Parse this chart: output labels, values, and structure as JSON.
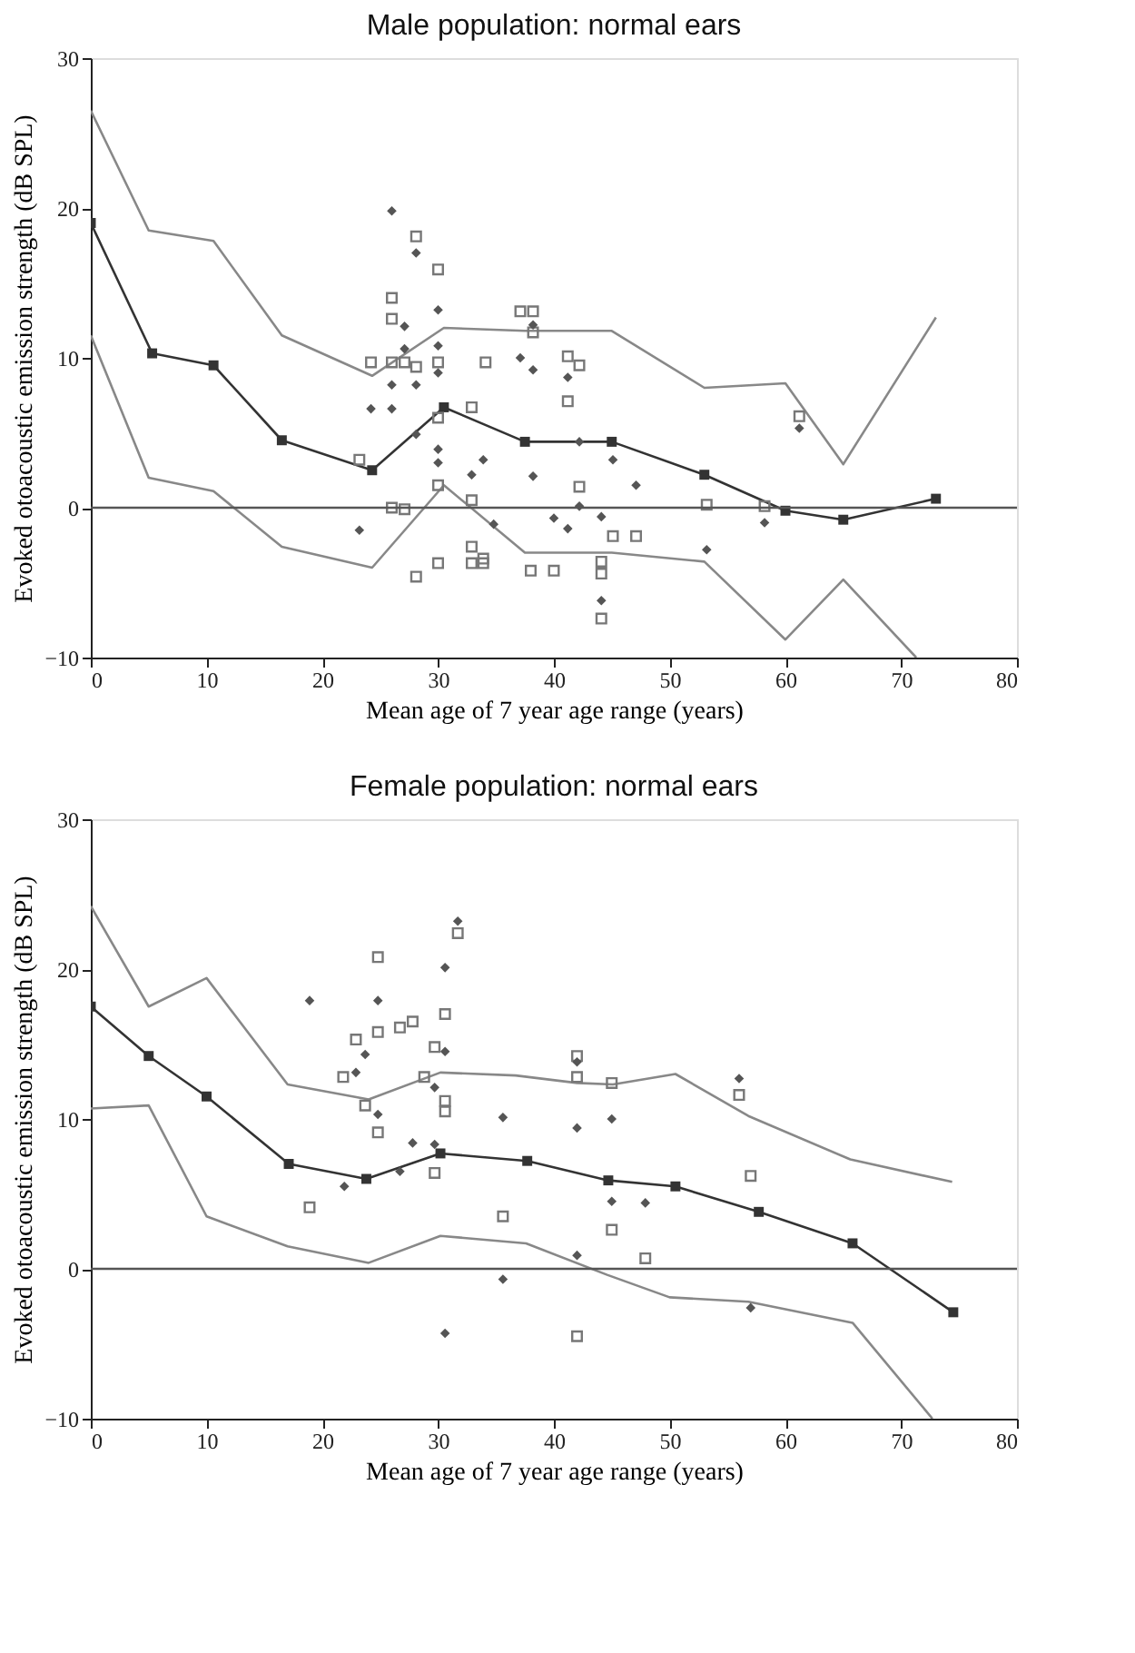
{
  "chart_data": [
    {
      "type": "scatter",
      "title": "Male population: normal ears",
      "xlabel": "Mean age of 7 year age range (years)",
      "ylabel": "Evoked otoacoustic emission strength (dB SPL)",
      "xlim": [
        0,
        80
      ],
      "xticks": [
        0,
        10,
        20,
        30,
        40,
        50,
        60,
        70,
        80
      ],
      "ylim": [
        -10,
        30
      ],
      "yticks": [
        -10,
        0,
        10,
        20,
        30
      ],
      "grid": false,
      "ref_lines": [
        {
          "axis": "y",
          "value": 0,
          "color": "#555555"
        }
      ],
      "series": [
        {
          "type": "line",
          "color": "#888888",
          "marker": "none",
          "x": [
            0,
            5,
            10.6,
            16.5,
            24.3,
            30.5,
            37.5,
            45,
            53,
            60,
            65,
            73
          ],
          "values": [
            26.5,
            18.5,
            17.8,
            11.5,
            8.8,
            12,
            11.8,
            11.8,
            8,
            8.3,
            2.9,
            12.7
          ]
        },
        {
          "type": "line",
          "color": "#888888",
          "marker": "none",
          "x": [
            0,
            5,
            10.6,
            16.5,
            24.3,
            30.5,
            37.5,
            45,
            53,
            60,
            65,
            71.3
          ],
          "values": [
            11.5,
            2,
            1.1,
            -2.6,
            -4,
            1.5,
            -3,
            -3,
            -3.6,
            -8.8,
            -4.8,
            -10
          ]
        },
        {
          "type": "line",
          "color": "#333333",
          "marker": "square",
          "x": [
            0,
            5.3,
            10.6,
            16.5,
            24.3,
            30.5,
            37.5,
            45,
            53,
            60,
            65,
            73
          ],
          "values": [
            19,
            10.3,
            9.5,
            4.5,
            2.5,
            6.7,
            4.4,
            4.4,
            2.2,
            -0.2,
            -0.8,
            0.6
          ]
        },
        {
          "color": "#777777",
          "marker": "square",
          "x": [
            23.2,
            24.2,
            26,
            26,
            26,
            27.1,
            26,
            27.1,
            28.1,
            28.1,
            28.1,
            30,
            30,
            30,
            30,
            30,
            32.9,
            32.9,
            32.9,
            32.9,
            33.9,
            34.1,
            37.1,
            38.2,
            38.2,
            41.2,
            42.2,
            41.2,
            42.2,
            38,
            40,
            44.1,
            44.1,
            44.1,
            45.1,
            47.1,
            53.2,
            58.2,
            61.2,
            33.9
          ],
          "values": [
            3.2,
            9.7,
            14,
            12.6,
            9.7,
            9.7,
            0,
            -0.1,
            18.1,
            9.4,
            -4.6,
            15.9,
            9.7,
            6,
            1.5,
            -3.7,
            6.7,
            0.5,
            -2.6,
            -3.7,
            -3.7,
            9.7,
            13.1,
            13.1,
            11.7,
            10.1,
            9.5,
            7.1,
            1.4,
            -4.2,
            -4.2,
            -3.6,
            -4.4,
            -7.4,
            -1.9,
            -1.9,
            0.2,
            0.1,
            6.1,
            -3.4
          ]
        },
        {
          "color": "#555555",
          "marker": "diamond",
          "x": [
            26,
            28.1,
            27.1,
            27.1,
            26,
            28.1,
            24.2,
            26,
            28.1,
            30,
            30,
            30,
            30,
            30,
            32.9,
            33.9,
            34.8,
            23.2,
            37.1,
            38.2,
            38.2,
            41.2,
            42.2,
            45.1,
            38.2,
            42.2,
            47.1,
            40,
            41.2,
            44.1,
            44.1,
            53.2,
            58.2,
            61.2
          ],
          "values": [
            19.8,
            17,
            12.1,
            10.6,
            8.2,
            8.2,
            6.6,
            6.6,
            4.9,
            13.2,
            10.8,
            9,
            3.9,
            3,
            2.2,
            3.2,
            -1.1,
            -1.5,
            10,
            9.2,
            12.2,
            8.7,
            4.4,
            3.2,
            2.1,
            0.1,
            1.5,
            -0.7,
            -1.4,
            -0.6,
            -6.2,
            -2.8,
            -1,
            5.3
          ]
        }
      ]
    },
    {
      "type": "scatter",
      "title": "Female population: normal ears",
      "xlabel": "Mean age of 7 year age range (years)",
      "ylabel": "Evoked otoacoustic emission strength (dB SPL)",
      "xlim": [
        0,
        80
      ],
      "xticks": [
        0,
        10,
        20,
        30,
        40,
        50,
        60,
        70,
        80
      ],
      "ylim": [
        -10,
        30
      ],
      "yticks": [
        -10,
        0,
        10,
        20,
        30
      ],
      "grid": false,
      "ref_lines": [
        {
          "axis": "y",
          "value": 0,
          "color": "#555555"
        }
      ],
      "series": [
        {
          "type": "line",
          "color": "#888888",
          "marker": "none",
          "x": [
            0,
            5,
            10,
            17,
            24,
            30.2,
            36.7,
            42,
            45.1,
            50.5,
            56.8,
            65.6,
            74.4
          ],
          "values": [
            24.2,
            17.5,
            19.4,
            12.3,
            11.3,
            13.1,
            12.9,
            12.4,
            12.3,
            13,
            10.2,
            7.3,
            5.8
          ]
        },
        {
          "type": "line",
          "color": "#888888",
          "marker": "none",
          "x": [
            0,
            5,
            10,
            17,
            24,
            30.2,
            37.6,
            44.6,
            50,
            56.8,
            65.8,
            72.7
          ],
          "values": [
            10.7,
            10.9,
            3.5,
            1.5,
            0.4,
            2.2,
            1.7,
            -0.4,
            -1.9,
            -2.2,
            -3.6,
            -10
          ]
        },
        {
          "type": "line",
          "color": "#333333",
          "marker": "square",
          "x": [
            0,
            5,
            10,
            17.1,
            23.8,
            30.2,
            37.7,
            44.7,
            50.5,
            57.7,
            65.8,
            74.5
          ],
          "values": [
            17.5,
            14.2,
            11.5,
            7,
            6,
            7.7,
            7.2,
            5.9,
            5.5,
            3.8,
            1.7,
            -2.9
          ]
        },
        {
          "color": "#777777",
          "marker": "square",
          "x": [
            18.9,
            21.8,
            22.9,
            23.7,
            24.8,
            24.8,
            24.8,
            26.7,
            27.8,
            29.7,
            29.7,
            30.6,
            30.6,
            30.6,
            31.7,
            35.6,
            28.8,
            42,
            42,
            45,
            56,
            57,
            45,
            47.9,
            42
          ],
          "values": [
            4.1,
            12.8,
            15.3,
            10.9,
            20.8,
            15.8,
            9.1,
            16.1,
            16.5,
            14.8,
            6.4,
            17,
            11.2,
            10.5,
            22.4,
            3.5,
            12.8,
            14.2,
            12.8,
            12.4,
            11.6,
            6.2,
            2.6,
            0.7,
            -4.5
          ]
        },
        {
          "color": "#555555",
          "marker": "diamond",
          "x": [
            18.9,
            22.9,
            23.7,
            24.8,
            24.8,
            21.9,
            26.7,
            27.8,
            29.7,
            29.7,
            30.6,
            30.6,
            31.7,
            35.6,
            35.6,
            30.6,
            42,
            42,
            45,
            56,
            45,
            47.9,
            42,
            57
          ],
          "values": [
            17.9,
            13.1,
            14.3,
            17.9,
            10.3,
            5.5,
            6.5,
            8.4,
            12.1,
            8.3,
            20.1,
            14.5,
            23.2,
            10.1,
            -0.7,
            -4.3,
            13.8,
            9.4,
            10,
            12.7,
            4.5,
            4.4,
            0.9,
            -2.6
          ]
        }
      ]
    }
  ]
}
